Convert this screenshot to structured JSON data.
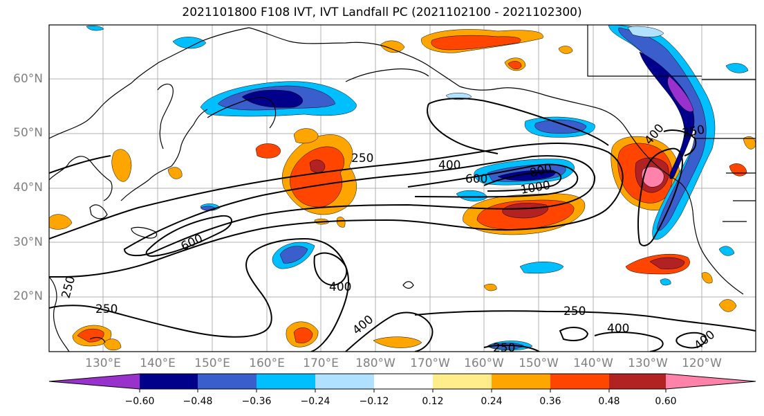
{
  "title": "2021101800 F108 IVT, IVT Landfall PC (2021102100 - 2021102300)",
  "map": {
    "lat_ticks": [
      "60°N",
      "50°N",
      "40°N",
      "30°N",
      "20°N"
    ],
    "lon_ticks": [
      "130°E",
      "140°E",
      "150°E",
      "160°E",
      "170°E",
      "180°W",
      "170°W",
      "160°W",
      "150°W",
      "140°W",
      "130°W",
      "120°W"
    ],
    "contour_labels": [
      "250",
      "400",
      "600",
      "800",
      "1000",
      "600",
      "250",
      "400",
      "250",
      "400",
      "250",
      "400",
      "400",
      "250",
      "250",
      "400"
    ]
  },
  "colorbar": {
    "colors": [
      "#9932cc",
      "#00008b",
      "#3a5fcd",
      "#00bfff",
      "#b0e2ff",
      "#ffffff",
      "#ffec8b",
      "#ffa500",
      "#ff4500",
      "#b22222",
      "#ff82ab"
    ],
    "tick_labels": [
      "−0.60",
      "−0.48",
      "−0.36",
      "−0.24",
      "−0.12",
      "0.12",
      "0.24",
      "0.36",
      "0.48",
      "0.60"
    ]
  }
}
